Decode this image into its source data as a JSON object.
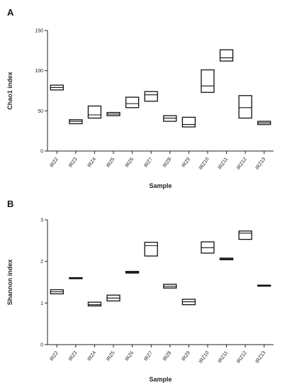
{
  "chart_data": [
    {
      "panel": "A",
      "type": "box",
      "xlabel": "Sample",
      "ylabel": "Chao1 index",
      "ylim": [
        0,
        150
      ],
      "yticks": [
        0,
        50,
        100,
        150
      ],
      "categories": [
        "IRZ2",
        "IRZ3",
        "IRZ4",
        "IRZ5",
        "IRZ6",
        "IRZ7",
        "IRZ8",
        "IRZ9",
        "IRZ10",
        "IRZ11",
        "IRZ12",
        "IRZ13"
      ],
      "boxes": [
        {
          "low": 76,
          "median": 79,
          "high": 82
        },
        {
          "low": 34,
          "median": 37,
          "high": 39
        },
        {
          "low": 41,
          "median": 45,
          "high": 56
        },
        {
          "low": 44,
          "median": 46,
          "high": 48
        },
        {
          "low": 54,
          "median": 59,
          "high": 67
        },
        {
          "low": 62,
          "median": 70,
          "high": 74
        },
        {
          "low": 37,
          "median": 41,
          "high": 44
        },
        {
          "low": 30,
          "median": 33,
          "high": 42
        },
        {
          "low": 73,
          "median": 81,
          "high": 101
        },
        {
          "low": 112,
          "median": 116,
          "high": 126
        },
        {
          "low": 41,
          "median": 54,
          "high": 69
        },
        {
          "low": 33,
          "median": 35,
          "high": 37
        }
      ],
      "grid": false
    },
    {
      "panel": "B",
      "type": "box",
      "xlabel": "Sample",
      "ylabel": "Shannon index",
      "ylim": [
        0,
        3
      ],
      "yticks": [
        0,
        1,
        2,
        3
      ],
      "categories": [
        "IRZ2",
        "IRZ3",
        "IRZ4",
        "IRZ5",
        "IRZ6",
        "IRZ7",
        "IRZ8",
        "IRZ9",
        "IRZ10",
        "IRZ11",
        "IRZ12",
        "IRZ13"
      ],
      "boxes": [
        {
          "low": 1.22,
          "median": 1.27,
          "high": 1.32
        },
        {
          "low": 1.59,
          "median": 1.6,
          "high": 1.61
        },
        {
          "low": 0.93,
          "median": 0.96,
          "high": 1.02
        },
        {
          "low": 1.05,
          "median": 1.12,
          "high": 1.19
        },
        {
          "low": 1.72,
          "median": 1.74,
          "high": 1.76
        },
        {
          "low": 2.13,
          "median": 2.38,
          "high": 2.46
        },
        {
          "low": 1.36,
          "median": 1.4,
          "high": 1.45
        },
        {
          "low": 0.96,
          "median": 1.03,
          "high": 1.09
        },
        {
          "low": 2.2,
          "median": 2.33,
          "high": 2.47
        },
        {
          "low": 2.04,
          "median": 2.06,
          "high": 2.08
        },
        {
          "low": 2.53,
          "median": 2.68,
          "high": 2.73
        },
        {
          "low": 1.41,
          "median": 1.42,
          "high": 1.43
        }
      ],
      "grid": false
    }
  ]
}
